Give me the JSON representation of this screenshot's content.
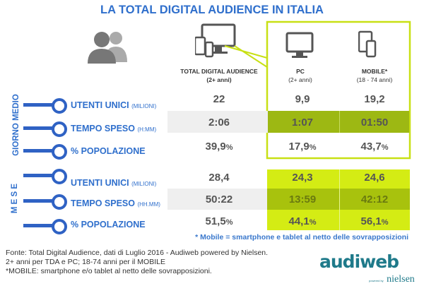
{
  "title": "LA TOTAL DIGITAL AUDIENCE IN ITALIA",
  "columns": [
    {
      "name": "TOTAL DIGITAL AUDIENCE",
      "sub": "(2+ anni)"
    },
    {
      "name": "PC",
      "sub": "(2+ anni)"
    },
    {
      "name": "MOBILE*",
      "sub": "(18 - 74 anni)"
    }
  ],
  "sections": {
    "day": "GIORNO MEDIO",
    "month": "M E S E"
  },
  "rows": [
    {
      "label": "UTENTI UNICI",
      "unit": "(MILIONI)",
      "tda": "22",
      "pc": "9,9",
      "mobile": "19,2"
    },
    {
      "label": "TEMPO SPESO",
      "unit": "(H:MM)",
      "tda": "2:06",
      "pc": "1:07",
      "mobile": "01:50"
    },
    {
      "label": "% POPOLAZIONE",
      "unit": "",
      "tda": "39,9",
      "pc": "17,9",
      "mobile": "43,7"
    },
    {
      "label": "UTENTI UNICI",
      "unit": "(MILIONI)",
      "tda": "28,4",
      "pc": "24,3",
      "mobile": "24,6"
    },
    {
      "label": "TEMPO SPESO",
      "unit": "(HH.MM)",
      "tda": "50:22",
      "pc": "13:59",
      "mobile": "42:12"
    },
    {
      "label": "% POPOLAZIONE",
      "unit": "",
      "tda": "51,5",
      "pc": "44,1",
      "mobile": "56,1"
    }
  ],
  "pct": "%",
  "note": "* Mobile = smartphone e tablet al netto delle sovrapposizioni",
  "footer": [
    "Fonte: Total Digital Audience, dati di Luglio 2016 - Audiweb powered by Nielsen.",
    "2+ anni per TDA e PC; 18-74 anni per il MOBILE",
    "*MOBILE: smartphone e/o tablet al netto delle sovrapposizioni."
  ],
  "logo": {
    "text": "audiweb",
    "powered": "powered by",
    "brand": "nielsen"
  },
  "colors": {
    "blue": "#2f6fcc",
    "green_light": "#d4ec14",
    "green_dark": "#9db813",
    "gray_band": "#efefef"
  }
}
